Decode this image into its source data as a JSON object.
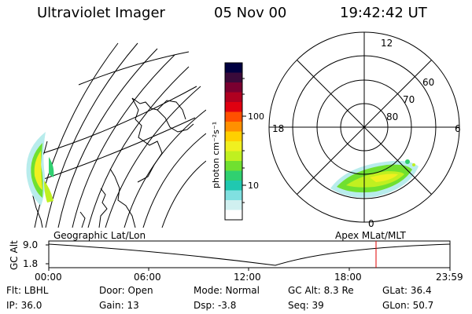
{
  "header": {
    "instrument": "Ultraviolet Imager",
    "date": "05 Nov 00",
    "time": "19:42:42 UT"
  },
  "colorbar": {
    "unit_label": "photon cm⁻²s⁻¹",
    "tick_labels": [
      "100",
      "10"
    ],
    "colors": [
      "#000040",
      "#3a0a3a",
      "#7a0030",
      "#b00020",
      "#e00010",
      "#ff5000",
      "#ff9000",
      "#ffd000",
      "#f0f020",
      "#c0f020",
      "#70e030",
      "#30d070",
      "#20c8b0",
      "#80e0e0",
      "#d0f0f0",
      "#ffffff"
    ]
  },
  "polar_plot": {
    "mlt_labels": {
      "top": "12",
      "left": "18",
      "right": "6",
      "bottom": "0"
    },
    "lat_labels": [
      "80",
      "70",
      "60"
    ]
  },
  "panel_labels": {
    "left": "Geographic Lat/Lon",
    "right": "Apex MLat/MLT"
  },
  "altitude_strip": {
    "axis_label": "GC Alt",
    "y_ticks": [
      "9.0",
      "1.8"
    ],
    "x_ticks": [
      "00:00",
      "06:00",
      "12:00",
      "18:00",
      "23:59"
    ],
    "current_time_marker": "19:42"
  },
  "footer": {
    "row1": [
      {
        "key": "flt",
        "text": "Flt: LBHL"
      },
      {
        "key": "door",
        "text": "Door: Open"
      },
      {
        "key": "mode",
        "text": "Mode: Normal"
      },
      {
        "key": "gcalt",
        "text": "GC Alt: 8.3 Re"
      },
      {
        "key": "glat",
        "text": "GLat:  36.4"
      }
    ],
    "row2": [
      {
        "key": "ip",
        "text": "IP: 36.0"
      },
      {
        "key": "gain",
        "text": "Gain: 13"
      },
      {
        "key": "dsp",
        "text": "Dsp:    -3.8"
      },
      {
        "key": "seq",
        "text": "Seq: 39"
      },
      {
        "key": "glon",
        "text": "GLon:  50.7"
      }
    ]
  },
  "colors": {
    "marker_line": "#e00000",
    "foreground": "#000000"
  }
}
